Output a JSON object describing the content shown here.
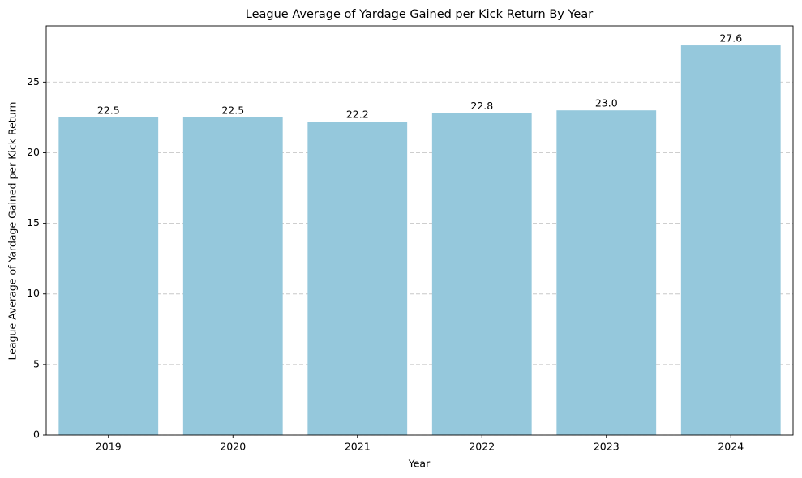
{
  "chart_data": {
    "type": "bar",
    "title": "League Average of Yardage Gained per Kick Return By Year",
    "x_label": "Year",
    "y_label": "League Average of Yardage Gained per Kick Return",
    "categories": [
      "2019",
      "2020",
      "2021",
      "2022",
      "2023",
      "2024"
    ],
    "values": [
      22.5,
      22.5,
      22.2,
      22.8,
      23.0,
      27.6
    ],
    "value_labels": [
      "22.5",
      "22.5",
      "22.2",
      "22.8",
      "23.0",
      "27.6"
    ],
    "color": "#95c8dc",
    "ylim": [
      0,
      28.98
    ],
    "yticks": [
      0,
      5,
      10,
      15,
      20,
      25
    ],
    "grid": true
  }
}
